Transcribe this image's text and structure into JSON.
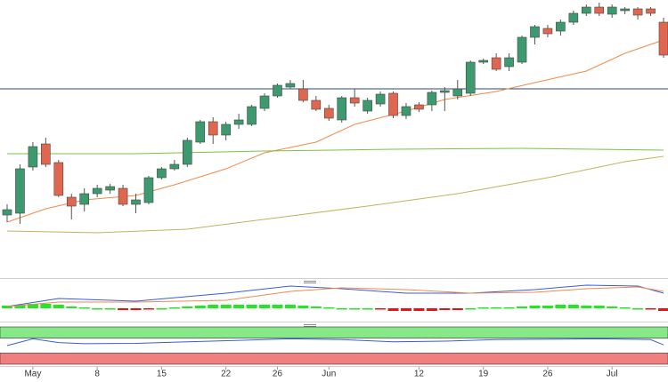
{
  "chart_data": {
    "type": "candlestick",
    "up_color": "#3d9a6e",
    "down_color": "#e06650",
    "ylim": [
      8,
      320
    ],
    "candles": {
      "open": [
        78,
        80,
        132,
        158,
        137,
        98,
        90,
        102,
        106,
        108,
        90,
        92,
        120,
        130,
        135,
        160,
        183,
        168,
        180,
        180,
        198,
        212,
        222,
        220,
        207,
        198,
        185,
        210,
        195,
        203,
        215,
        190,
        202,
        202,
        216,
        212,
        215,
        250,
        255,
        245,
        250,
        278,
        288,
        285,
        295,
        305,
        312,
        304,
        308,
        310,
        310,
        295
      ],
      "high": [
        90,
        135,
        160,
        165,
        140,
        102,
        108,
        112,
        113,
        112,
        102,
        122,
        132,
        140,
        165,
        185,
        188,
        183,
        192,
        202,
        215,
        226,
        230,
        230,
        212,
        202,
        212,
        220,
        210,
        217,
        217,
        204,
        205,
        218,
        222,
        230,
        252,
        254,
        260,
        260,
        280,
        292,
        292,
        298,
        308,
        315,
        317,
        315,
        312,
        312,
        312,
        300
      ],
      "low": [
        70,
        68,
        128,
        132,
        98,
        73,
        82,
        98,
        102,
        88,
        80,
        90,
        118,
        128,
        132,
        158,
        158,
        162,
        175,
        178,
        195,
        210,
        220,
        205,
        195,
        184,
        182,
        200,
        192,
        200,
        187,
        186,
        194,
        195,
        195,
        208,
        212,
        248,
        240,
        240,
        248,
        270,
        278,
        280,
        292,
        302,
        302,
        300,
        304,
        298,
        302,
        255
      ],
      "close": [
        84,
        130,
        155,
        135,
        100,
        88,
        102,
        108,
        110,
        90,
        95,
        120,
        130,
        135,
        162,
        183,
        168,
        180,
        185,
        200,
        212,
        224,
        226,
        207,
        197,
        187,
        210,
        204,
        207,
        214,
        190,
        200,
        197,
        216,
        218,
        220,
        250,
        252,
        242,
        255,
        278,
        290,
        282,
        295,
        305,
        312,
        305,
        312,
        310,
        303,
        305,
        258
      ]
    },
    "hline": {
      "value": 220,
      "color": "#2b4a7a"
    },
    "series": [
      {
        "color": "#f08a4b",
        "x": [
          0,
          3,
          6,
          10,
          13,
          17,
          20,
          24,
          27,
          31,
          34,
          38,
          41,
          45,
          48,
          51
        ],
        "values": [
          70,
          85,
          95,
          100,
          112,
          130,
          148,
          160,
          180,
          195,
          208,
          217,
          227,
          240,
          260,
          275
        ]
      },
      {
        "color": "#7cc243",
        "x": [
          0,
          10,
          20,
          30,
          40,
          51
        ],
        "values": [
          147,
          147,
          150,
          152,
          153,
          151
        ]
      },
      {
        "color": "#c2b35e",
        "x": [
          0,
          7,
          14,
          21,
          28,
          35,
          42,
          48,
          51
        ],
        "values": [
          60,
          58,
          62,
          75,
          88,
          102,
          120,
          138,
          144
        ]
      }
    ],
    "xticks": [
      {
        "value": 2,
        "label": "May"
      },
      {
        "value": 7,
        "label": "8"
      },
      {
        "value": 12,
        "label": "15"
      },
      {
        "value": 17,
        "label": "22"
      },
      {
        "value": 21,
        "label": "26"
      },
      {
        "value": 25,
        "label": "Jun"
      },
      {
        "value": 32,
        "label": "12"
      },
      {
        "value": 37,
        "label": "19"
      },
      {
        "value": 42,
        "label": "26"
      },
      {
        "value": 47,
        "label": "Jul"
      }
    ],
    "macd": {
      "ylim": [
        -9,
        29
      ],
      "histogram": [
        3,
        4,
        5,
        5,
        4,
        2,
        1,
        0,
        0,
        -2,
        -2,
        -1,
        0,
        1,
        2,
        3,
        4,
        4,
        4,
        4,
        4,
        4,
        4,
        3,
        2,
        1,
        0,
        0,
        0,
        -1,
        -3,
        -3,
        -3,
        -3,
        -2,
        -2,
        0,
        1,
        1,
        1,
        2,
        3,
        3,
        4,
        4,
        3,
        3,
        2,
        1,
        0,
        -1,
        -3
      ],
      "up_color": "#22e822",
      "down_color": "#ee1111",
      "lines": [
        {
          "color": "#3b5bdb",
          "x": [
            0,
            4,
            10,
            17,
            22,
            26,
            31,
            36,
            41,
            45,
            49,
            51
          ],
          "values": [
            2,
            11,
            8,
            17,
            25,
            22,
            17,
            17,
            21,
            26,
            25,
            17
          ]
        },
        {
          "color": "#f08a4b",
          "x": [
            0,
            4,
            10,
            17,
            22,
            26,
            31,
            36,
            41,
            45,
            49,
            51
          ],
          "values": [
            2,
            7,
            7,
            9,
            19,
            23,
            21,
            17,
            18,
            22,
            24,
            19
          ]
        }
      ]
    },
    "rsi": {
      "ylim": [
        0,
        100
      ],
      "bands": [
        {
          "from": 70,
          "to": 100,
          "color": "#86e886"
        },
        {
          "from": 0,
          "to": 30,
          "color": "#f08080"
        }
      ],
      "line": {
        "color": "#3b5bdb",
        "x": [
          0,
          2,
          4,
          6,
          10,
          14,
          18,
          22,
          26,
          30,
          34,
          38,
          42,
          46,
          50,
          51
        ],
        "values": [
          50,
          68,
          58,
          55,
          56,
          60,
          64,
          68,
          66,
          60,
          62,
          66,
          67,
          68,
          66,
          52
        ]
      }
    }
  }
}
